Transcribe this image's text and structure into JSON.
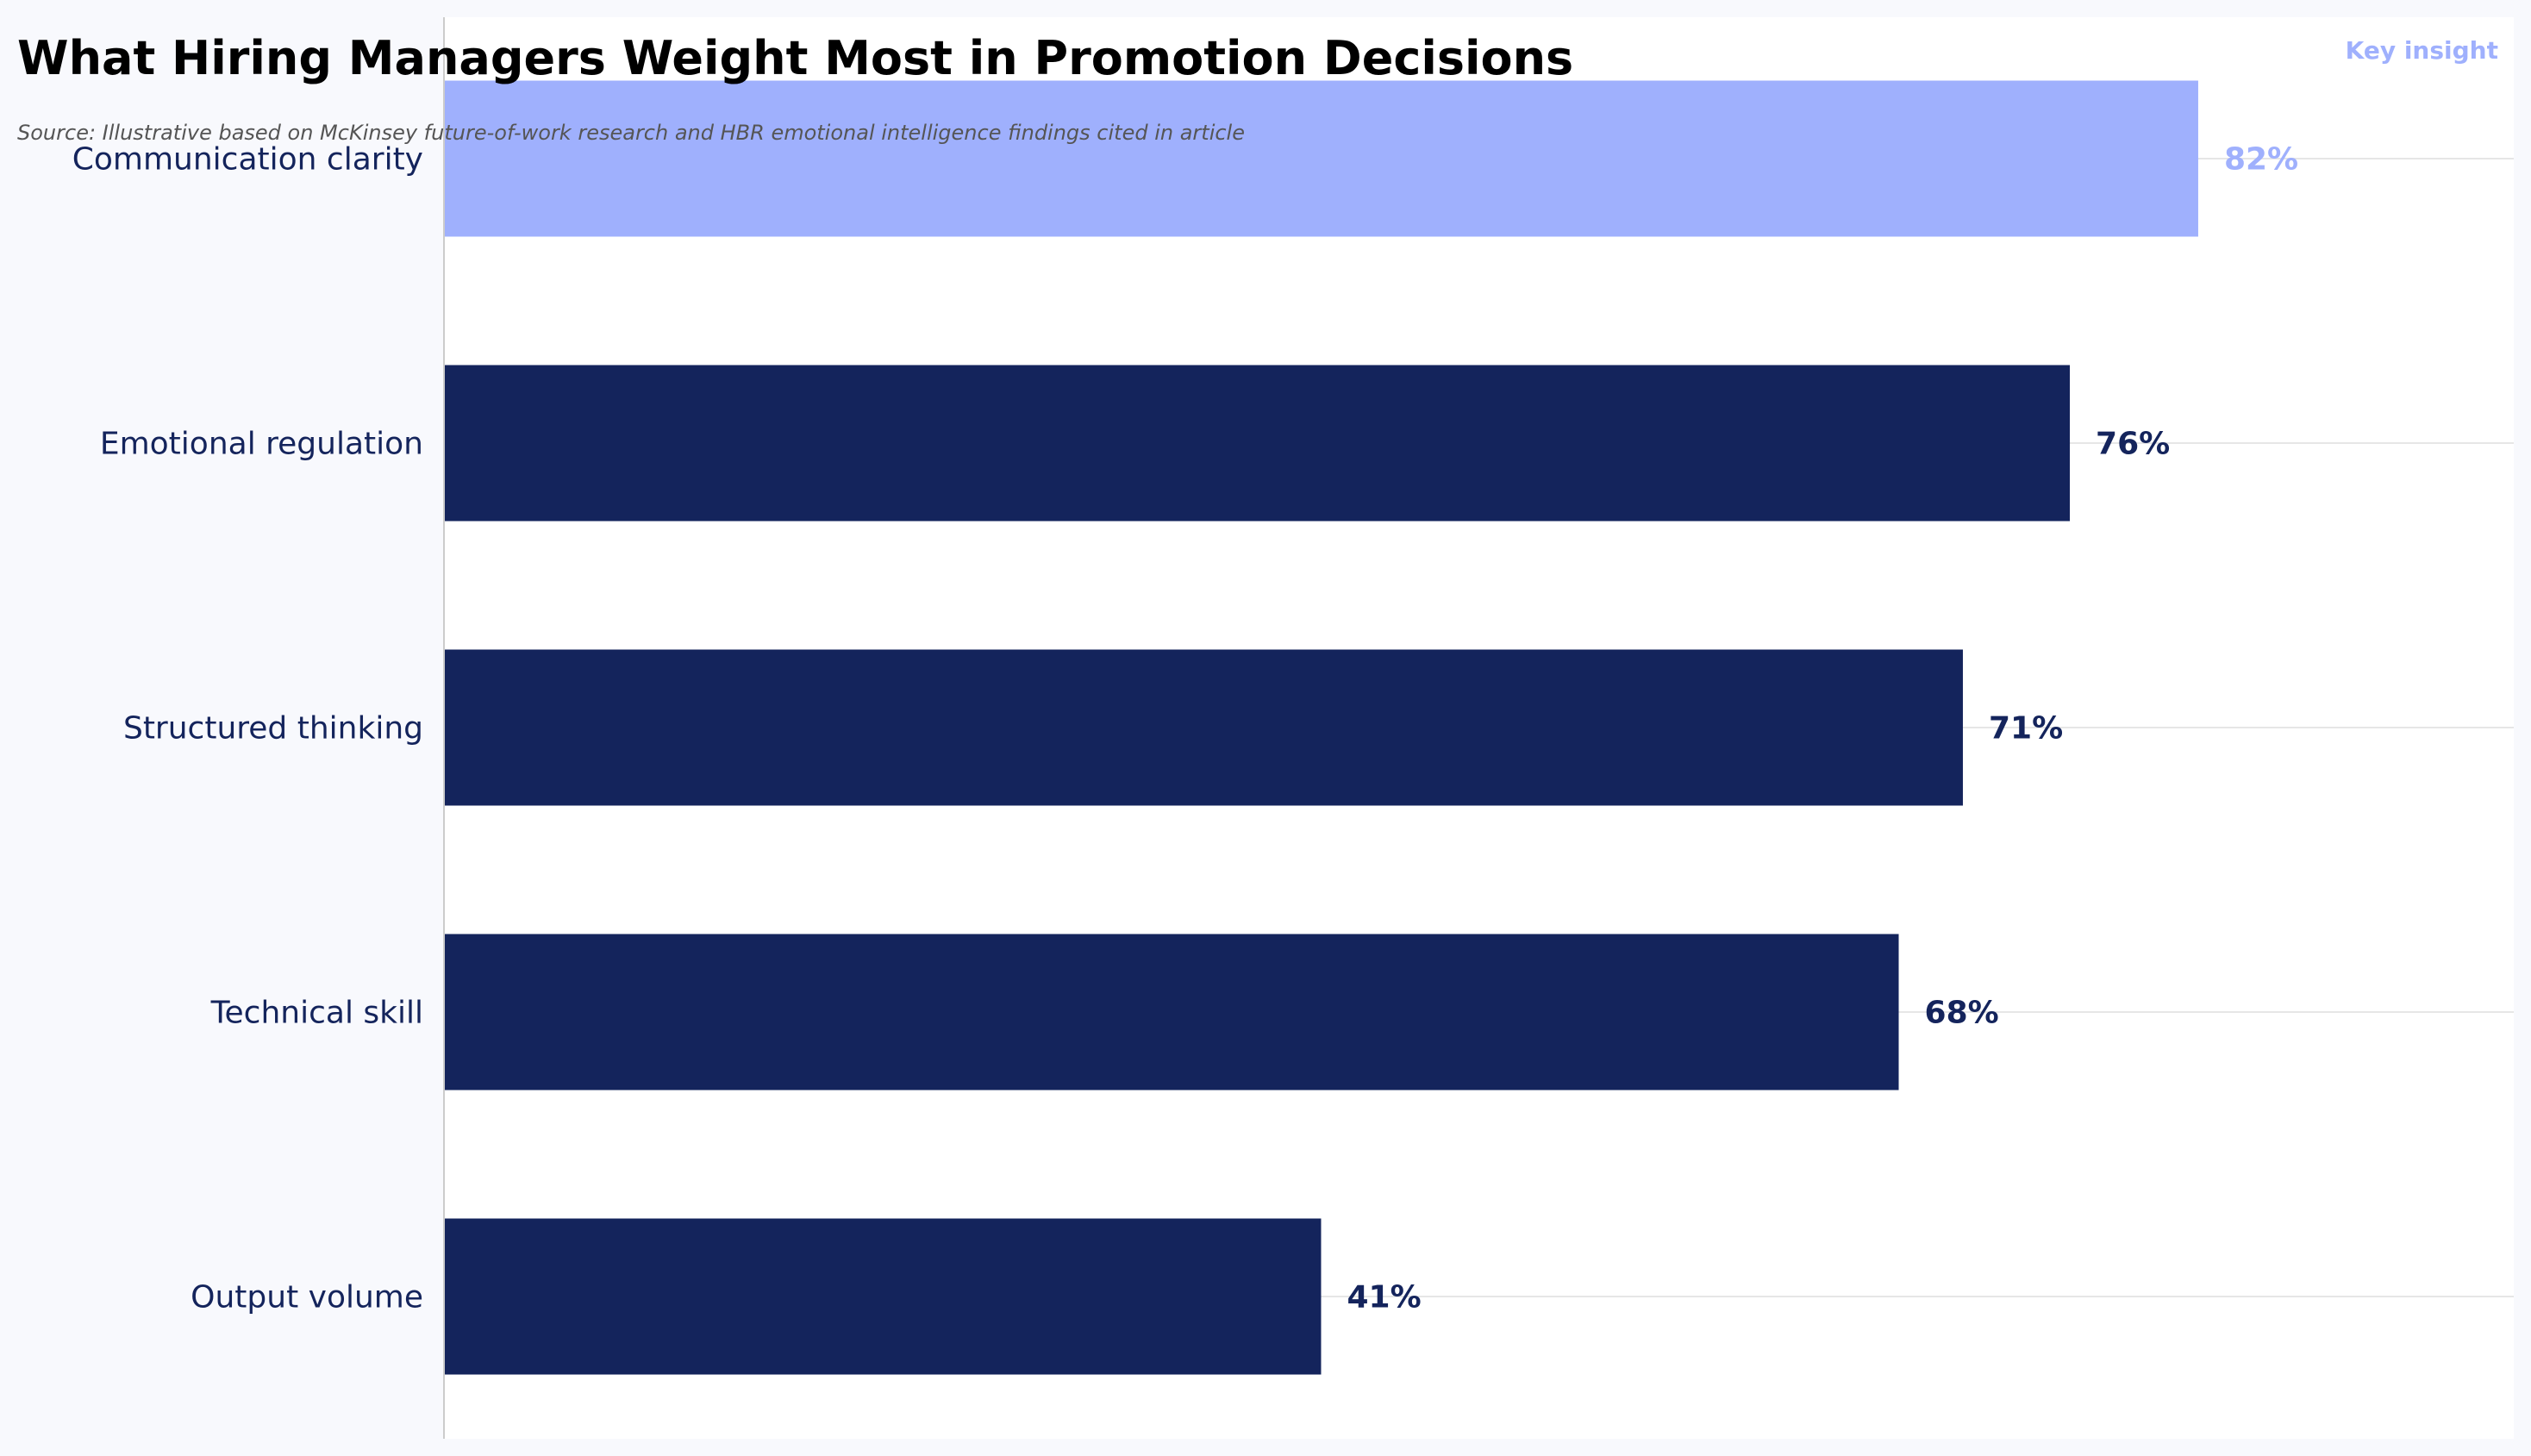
{
  "chart_data": {
    "type": "bar",
    "orientation": "horizontal",
    "title": "What Hiring Managers Weight Most in Promotion Decisions",
    "subtitle": "Source: Illustrative based on McKinsey future-of-work research and HBR emotional intelligence findings cited in article",
    "categories": [
      "Communication clarity",
      "Emotional regulation",
      "Structured thinking",
      "Technical skill",
      "Output volume"
    ],
    "values": [
      82,
      76,
      71,
      68,
      41
    ],
    "value_labels": [
      "82%",
      "76%",
      "71%",
      "68%",
      "41%"
    ],
    "highlight_index": 0,
    "annotation": "Key insight",
    "xlim": [
      0,
      96.75
    ],
    "xlabel": "",
    "ylabel": "",
    "grid": true,
    "colors": {
      "bar": "#14245c",
      "highlight": "#9fb0fd",
      "label_text": "#14245c",
      "grid": "#e6e6e6",
      "axis": "#cccccc",
      "plot_background": "#ffffff",
      "page_background": "#f8f9fd"
    }
  }
}
